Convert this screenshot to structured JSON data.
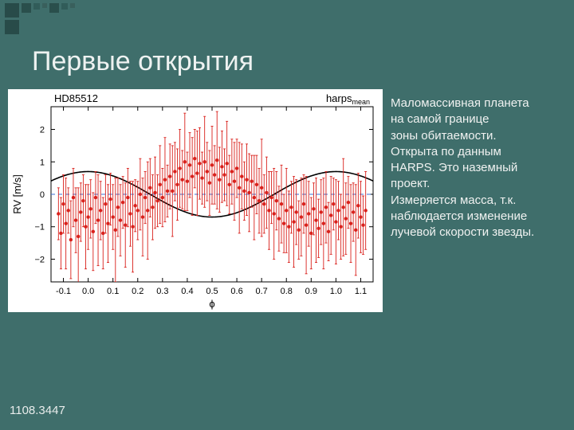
{
  "slide": {
    "title": "Первые открытия",
    "footer": "1108.3447",
    "body_lines": [
      "Маломассивная планета",
      "на самой границе",
      "зоны обитаемости.",
      "Открыта по данным",
      "HARPS. Это наземный",
      "проект.",
      "Измеряется масса, т.к.",
      "наблюдается изменение",
      "лучевой скорости звезды."
    ]
  },
  "chart": {
    "type": "scatter-with-curve",
    "title_left": "HD85512",
    "title_right_prefix": "harps",
    "title_right_sub": "mean",
    "xlabel": "ϕ",
    "ylabel": "RV [m/s]",
    "xlim": [
      -0.15,
      1.15
    ],
    "ylim": [
      -2.7,
      2.7
    ],
    "xtick_step": 0.1,
    "xtick_first": -0.1,
    "xtick_last": 1.1,
    "ytick_step": 1,
    "ytick_first": -2,
    "ytick_last": 2,
    "background_color": "#ffffff",
    "frame_color": "#000000",
    "tick_color": "#000000",
    "tick_fontsize": 11,
    "label_fontsize": 13,
    "title_fontsize": 13,
    "zero_line": {
      "y": 0,
      "color": "#3b6fd6",
      "dash": "5,4",
      "width": 1
    },
    "curve": {
      "type": "sine",
      "amplitude": 0.7,
      "phase_offset": 0.75,
      "vertical_offset": 0,
      "color": "#000000",
      "width": 1.6
    },
    "series": {
      "marker": "circle",
      "marker_size": 2.2,
      "marker_color": "#d9201b",
      "errorbar_color": "#d9201b",
      "errorbar_width": 0.9,
      "cap_width": 3
    },
    "points": [
      {
        "x": -0.12,
        "y": -0.6,
        "e": 0.8
      },
      {
        "x": -0.11,
        "y": -1.2,
        "e": 1.1
      },
      {
        "x": -0.1,
        "y": -0.3,
        "e": 0.9
      },
      {
        "x": -0.09,
        "y": -0.9,
        "e": 1.4
      },
      {
        "x": -0.08,
        "y": -0.5,
        "e": 0.7
      },
      {
        "x": -0.07,
        "y": -1.4,
        "e": 1.2
      },
      {
        "x": -0.06,
        "y": -0.1,
        "e": 0.9
      },
      {
        "x": -0.05,
        "y": -0.8,
        "e": 1.0
      },
      {
        "x": -0.04,
        "y": -1.3,
        "e": 1.5
      },
      {
        "x": -0.03,
        "y": -0.55,
        "e": 0.9
      },
      {
        "x": -0.02,
        "y": -0.2,
        "e": 0.8
      },
      {
        "x": -0.01,
        "y": -1.0,
        "e": 1.3
      },
      {
        "x": 0.0,
        "y": -0.7,
        "e": 1.0
      },
      {
        "x": 0.01,
        "y": -0.45,
        "e": 0.9
      },
      {
        "x": 0.02,
        "y": -1.15,
        "e": 1.2
      },
      {
        "x": 0.03,
        "y": -0.1,
        "e": 0.8
      },
      {
        "x": 0.04,
        "y": -0.8,
        "e": 1.4
      },
      {
        "x": 0.05,
        "y": -0.5,
        "e": 0.9
      },
      {
        "x": 0.06,
        "y": -1.2,
        "e": 1.1
      },
      {
        "x": 0.07,
        "y": -0.3,
        "e": 0.9
      },
      {
        "x": 0.08,
        "y": -0.9,
        "e": 1.2
      },
      {
        "x": 0.09,
        "y": -0.15,
        "e": 0.8
      },
      {
        "x": 0.1,
        "y": -0.7,
        "e": 1.0
      },
      {
        "x": 0.11,
        "y": -1.1,
        "e": 1.6
      },
      {
        "x": 0.12,
        "y": -0.4,
        "e": 0.9
      },
      {
        "x": 0.13,
        "y": -0.8,
        "e": 1.1
      },
      {
        "x": 0.14,
        "y": -0.25,
        "e": 0.8
      },
      {
        "x": 0.15,
        "y": -0.95,
        "e": 1.3
      },
      {
        "x": 0.16,
        "y": -0.1,
        "e": 0.9
      },
      {
        "x": 0.17,
        "y": -0.6,
        "e": 1.0
      },
      {
        "x": 0.18,
        "y": -1.0,
        "e": 1.4
      },
      {
        "x": 0.19,
        "y": -0.35,
        "e": 0.8
      },
      {
        "x": 0.2,
        "y": -0.5,
        "e": 0.9
      },
      {
        "x": 0.21,
        "y": 0.0,
        "e": 1.1
      },
      {
        "x": 0.22,
        "y": -0.7,
        "e": 1.2
      },
      {
        "x": 0.23,
        "y": -0.1,
        "e": 0.8
      },
      {
        "x": 0.24,
        "y": -0.5,
        "e": 1.5
      },
      {
        "x": 0.25,
        "y": 0.2,
        "e": 0.9
      },
      {
        "x": 0.26,
        "y": -0.4,
        "e": 1.0
      },
      {
        "x": 0.27,
        "y": 0.05,
        "e": 1.1
      },
      {
        "x": 0.28,
        "y": -0.2,
        "e": 0.8
      },
      {
        "x": 0.29,
        "y": 0.3,
        "e": 1.2
      },
      {
        "x": 0.3,
        "y": -0.1,
        "e": 0.9
      },
      {
        "x": 0.31,
        "y": 0.45,
        "e": 1.3
      },
      {
        "x": 0.32,
        "y": 0.1,
        "e": 0.8
      },
      {
        "x": 0.33,
        "y": 0.55,
        "e": 1.0
      },
      {
        "x": 0.34,
        "y": 0.1,
        "e": 1.4
      },
      {
        "x": 0.35,
        "y": 0.7,
        "e": 0.9
      },
      {
        "x": 0.36,
        "y": 0.3,
        "e": 1.1
      },
      {
        "x": 0.37,
        "y": 0.8,
        "e": 1.2
      },
      {
        "x": 0.38,
        "y": 0.45,
        "e": 0.9
      },
      {
        "x": 0.39,
        "y": 1.0,
        "e": 1.5
      },
      {
        "x": 0.4,
        "y": 0.4,
        "e": 0.9
      },
      {
        "x": 0.41,
        "y": 0.9,
        "e": 1.0
      },
      {
        "x": 0.42,
        "y": 0.55,
        "e": 1.2
      },
      {
        "x": 0.43,
        "y": 1.1,
        "e": 0.9
      },
      {
        "x": 0.44,
        "y": 0.65,
        "e": 1.3
      },
      {
        "x": 0.45,
        "y": 0.95,
        "e": 1.1
      },
      {
        "x": 0.46,
        "y": 0.5,
        "e": 0.8
      },
      {
        "x": 0.47,
        "y": 1.0,
        "e": 1.4
      },
      {
        "x": 0.48,
        "y": 0.7,
        "e": 0.9
      },
      {
        "x": 0.49,
        "y": 0.35,
        "e": 1.0
      },
      {
        "x": 0.5,
        "y": 0.9,
        "e": 1.2
      },
      {
        "x": 0.51,
        "y": 0.6,
        "e": 0.9
      },
      {
        "x": 0.52,
        "y": 1.05,
        "e": 1.5
      },
      {
        "x": 0.53,
        "y": 0.45,
        "e": 1.0
      },
      {
        "x": 0.54,
        "y": 0.85,
        "e": 1.1
      },
      {
        "x": 0.55,
        "y": 0.6,
        "e": 0.8
      },
      {
        "x": 0.56,
        "y": 0.95,
        "e": 1.3
      },
      {
        "x": 0.57,
        "y": 0.3,
        "e": 0.9
      },
      {
        "x": 0.58,
        "y": 0.7,
        "e": 1.0
      },
      {
        "x": 0.59,
        "y": 0.4,
        "e": 1.2
      },
      {
        "x": 0.6,
        "y": 0.8,
        "e": 0.9
      },
      {
        "x": 0.61,
        "y": 0.2,
        "e": 1.4
      },
      {
        "x": 0.62,
        "y": 0.55,
        "e": 1.0
      },
      {
        "x": 0.63,
        "y": 0.1,
        "e": 0.9
      },
      {
        "x": 0.64,
        "y": 0.45,
        "e": 1.1
      },
      {
        "x": 0.65,
        "y": 0.05,
        "e": 1.2
      },
      {
        "x": 0.66,
        "y": 0.4,
        "e": 0.8
      },
      {
        "x": 0.67,
        "y": -0.1,
        "e": 1.3
      },
      {
        "x": 0.68,
        "y": 0.3,
        "e": 0.9
      },
      {
        "x": 0.69,
        "y": -0.2,
        "e": 1.0
      },
      {
        "x": 0.7,
        "y": 0.2,
        "e": 1.5
      },
      {
        "x": 0.71,
        "y": -0.3,
        "e": 0.9
      },
      {
        "x": 0.72,
        "y": 0.05,
        "e": 1.1
      },
      {
        "x": 0.73,
        "y": -0.5,
        "e": 1.2
      },
      {
        "x": 0.74,
        "y": -0.1,
        "e": 0.8
      },
      {
        "x": 0.75,
        "y": -0.6,
        "e": 1.4
      },
      {
        "x": 0.76,
        "y": -0.2,
        "e": 0.9
      },
      {
        "x": 0.77,
        "y": -0.75,
        "e": 1.0
      },
      {
        "x": 0.78,
        "y": -0.3,
        "e": 1.2
      },
      {
        "x": 0.79,
        "y": -0.9,
        "e": 0.9
      },
      {
        "x": 0.8,
        "y": -0.5,
        "e": 1.3
      },
      {
        "x": 0.81,
        "y": -1.0,
        "e": 1.1
      },
      {
        "x": 0.82,
        "y": -0.4,
        "e": 0.8
      },
      {
        "x": 0.83,
        "y": -0.85,
        "e": 1.4
      },
      {
        "x": 0.84,
        "y": -0.55,
        "e": 1.0
      },
      {
        "x": 0.85,
        "y": -1.1,
        "e": 0.9
      },
      {
        "x": 0.86,
        "y": -0.7,
        "e": 1.2
      },
      {
        "x": 0.87,
        "y": -0.3,
        "e": 0.9
      },
      {
        "x": 0.88,
        "y": -0.95,
        "e": 1.5
      },
      {
        "x": 0.89,
        "y": -0.6,
        "e": 1.0
      },
      {
        "x": 0.9,
        "y": -1.2,
        "e": 1.1
      },
      {
        "x": 0.91,
        "y": -0.45,
        "e": 0.8
      },
      {
        "x": 0.92,
        "y": -0.8,
        "e": 1.3
      },
      {
        "x": 0.93,
        "y": -1.05,
        "e": 0.9
      },
      {
        "x": 0.94,
        "y": -0.55,
        "e": 1.0
      },
      {
        "x": 0.95,
        "y": -0.9,
        "e": 1.4
      },
      {
        "x": 0.96,
        "y": -0.4,
        "e": 1.1
      },
      {
        "x": 0.97,
        "y": -1.15,
        "e": 0.9
      },
      {
        "x": 0.98,
        "y": -0.65,
        "e": 1.2
      },
      {
        "x": 0.99,
        "y": -0.3,
        "e": 0.8
      },
      {
        "x": 1.0,
        "y": -0.85,
        "e": 1.3
      },
      {
        "x": 1.01,
        "y": -0.5,
        "e": 0.9
      },
      {
        "x": 1.02,
        "y": -1.0,
        "e": 1.0
      },
      {
        "x": 1.03,
        "y": -0.4,
        "e": 1.5
      },
      {
        "x": 1.04,
        "y": -0.75,
        "e": 1.1
      },
      {
        "x": 1.05,
        "y": -0.25,
        "e": 0.8
      },
      {
        "x": 1.06,
        "y": -0.9,
        "e": 1.2
      },
      {
        "x": 1.07,
        "y": -0.55,
        "e": 0.9
      },
      {
        "x": 1.08,
        "y": -1.1,
        "e": 1.4
      },
      {
        "x": 1.09,
        "y": -0.35,
        "e": 1.0
      },
      {
        "x": 1.1,
        "y": -0.7,
        "e": 1.1
      },
      {
        "x": 1.11,
        "y": -0.95,
        "e": 0.9
      },
      {
        "x": 1.12,
        "y": -0.5,
        "e": 1.2
      }
    ]
  }
}
